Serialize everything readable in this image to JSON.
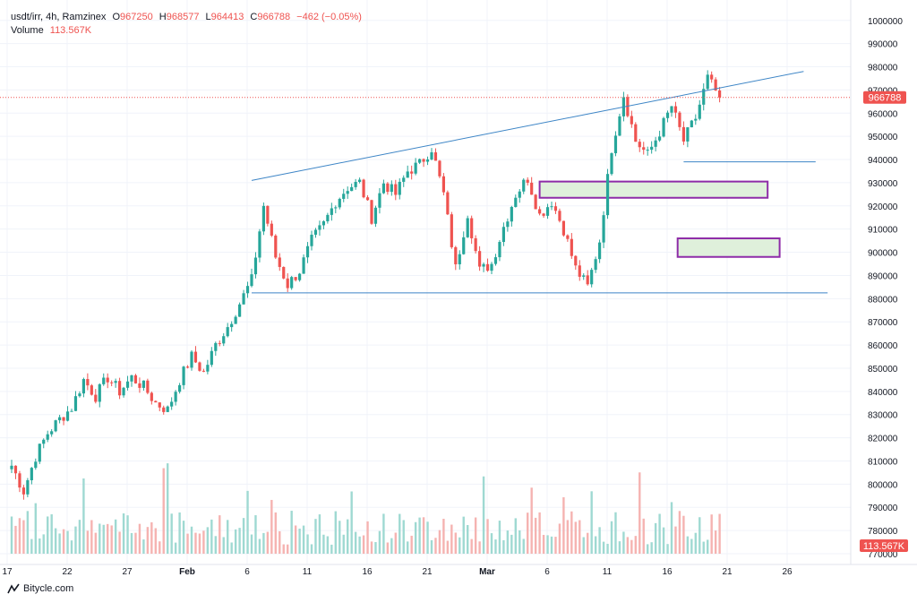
{
  "header": {
    "symbol": "usdt/irr, 4h, Ramzinex",
    "o_key": "O",
    "o_val": "967250",
    "h_key": "H",
    "h_val": "968577",
    "l_key": "L",
    "l_val": "964413",
    "c_key": "C",
    "c_val": "966788",
    "change": "−462 (−0.05%)",
    "volume_label": "Volume",
    "volume_val": "113.567K"
  },
  "footer": {
    "brand": "Bitycle.com"
  },
  "colors": {
    "up": "#26a69a",
    "down": "#ef5350",
    "line": "#3d85c6",
    "zone_fill": "#dff0db",
    "zone_border": "#8e2ca8",
    "grid": "#f0f3fa"
  },
  "chart_data": {
    "type": "candlestick",
    "title": "usdt/irr, 4h, Ramzinex",
    "ylim": [
      770000,
      1003000
    ],
    "yticks": [
      1000000,
      990000,
      980000,
      970000,
      960000,
      950000,
      940000,
      930000,
      920000,
      910000,
      900000,
      890000,
      880000,
      870000,
      860000,
      850000,
      840000,
      830000,
      820000,
      810000,
      800000,
      790000,
      780000,
      770000
    ],
    "ytick_labels": [
      "1000000",
      "990000",
      "980000",
      "970000",
      "960000",
      "950000",
      "940000",
      "930000",
      "920000",
      "910000",
      "900000",
      "890000",
      "880000",
      "870000",
      "860000",
      "850000",
      "840000",
      "830000",
      "820000",
      "810000",
      "800000",
      "790000",
      "780000",
      "770000"
    ],
    "xtick_labels": [
      "17",
      "22",
      "27",
      "Feb",
      "6",
      "11",
      "16",
      "21",
      "Mar",
      "6",
      "11",
      "16",
      "21",
      "26"
    ],
    "xtick_days": [
      0,
      5,
      10,
      15,
      20,
      25,
      30,
      35,
      40,
      45,
      50,
      55,
      60,
      65
    ],
    "last_price": 966788,
    "last_price_label": "966788",
    "volume_label": "113.567K",
    "price_path": [
      [
        0,
        808000
      ],
      [
        1,
        797000
      ],
      [
        2,
        812000
      ],
      [
        3,
        822000
      ],
      [
        4,
        828000
      ],
      [
        5,
        833000
      ],
      [
        6,
        845000
      ],
      [
        7,
        838000
      ],
      [
        8,
        846000
      ],
      [
        9,
        840000
      ],
      [
        10,
        846000
      ],
      [
        11,
        842000
      ],
      [
        12,
        835000
      ],
      [
        13,
        832000
      ],
      [
        14,
        845000
      ],
      [
        15,
        855000
      ],
      [
        16,
        848000
      ],
      [
        17,
        860000
      ],
      [
        18,
        868000
      ],
      [
        19,
        878000
      ],
      [
        20,
        888000
      ],
      [
        21,
        920000
      ],
      [
        22,
        898000
      ],
      [
        23,
        886000
      ],
      [
        24,
        892000
      ],
      [
        25,
        905000
      ],
      [
        26,
        912000
      ],
      [
        27,
        922000
      ],
      [
        28,
        928000
      ],
      [
        29,
        930000
      ],
      [
        30,
        915000
      ],
      [
        31,
        930000
      ],
      [
        32,
        925000
      ],
      [
        33,
        935000
      ],
      [
        34,
        938000
      ],
      [
        35,
        945000
      ],
      [
        36,
        925000
      ],
      [
        37,
        893000
      ],
      [
        38,
        917000
      ],
      [
        39,
        892000
      ],
      [
        40,
        895000
      ],
      [
        41,
        911000
      ],
      [
        42,
        925000
      ],
      [
        43,
        932000
      ],
      [
        44,
        916000
      ],
      [
        45,
        922000
      ],
      [
        46,
        910000
      ],
      [
        47,
        893000
      ],
      [
        48,
        885000
      ],
      [
        49,
        905000
      ],
      [
        50,
        945000
      ],
      [
        51,
        968000
      ],
      [
        52,
        948000
      ],
      [
        53,
        942000
      ],
      [
        54,
        952000
      ],
      [
        55,
        963000
      ],
      [
        56,
        948000
      ],
      [
        57,
        958000
      ],
      [
        58,
        975000
      ],
      [
        59,
        966788
      ]
    ],
    "lines": [
      {
        "name": "upper-trendline",
        "from": [
          20,
          931000
        ],
        "to": [
          66,
          978000
        ]
      },
      {
        "name": "support-line",
        "from": [
          20,
          882500
        ],
        "to": [
          68,
          882500
        ]
      },
      {
        "name": "short-support",
        "from": [
          56,
          939000
        ],
        "to": [
          67,
          939000
        ]
      }
    ],
    "zones": [
      {
        "name": "resistance-zone",
        "x0": 44,
        "x1": 63,
        "y0": 923500,
        "y1": 930500
      },
      {
        "name": "demand-zone",
        "x0": 55.5,
        "x1": 64,
        "y0": 898000,
        "y1": 906000
      }
    ]
  }
}
